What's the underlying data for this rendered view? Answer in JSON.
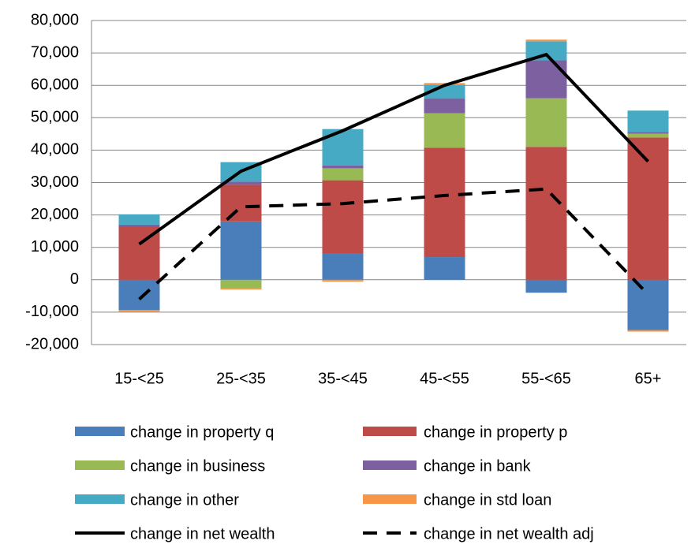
{
  "chart_data": {
    "type": "bar-line",
    "categories": [
      "15-<25",
      "25-<35",
      "35-<45",
      "45-<55",
      "55-<65",
      "65+"
    ],
    "series": [
      {
        "name": "change in property q",
        "color": "#4a7ebb",
        "kind": "bar",
        "values": [
          -9300,
          18000,
          8000,
          7000,
          -4000,
          -15500
        ]
      },
      {
        "name": "change in property p",
        "color": "#be4b48",
        "kind": "bar",
        "values": [
          16500,
          11300,
          22700,
          33700,
          41000,
          43900
        ]
      },
      {
        "name": "change in business",
        "color": "#98b954",
        "kind": "bar",
        "values": [
          0,
          -2500,
          3700,
          10700,
          15000,
          1200
        ]
      },
      {
        "name": "change in bank",
        "color": "#7d60a0",
        "kind": "bar",
        "values": [
          500,
          1000,
          900,
          4600,
          11700,
          500
        ]
      },
      {
        "name": "change in other",
        "color": "#46aac5",
        "kind": "bar",
        "values": [
          3200,
          6000,
          11200,
          4200,
          5900,
          6600
        ]
      },
      {
        "name": "change in std loan",
        "color": "#f79646",
        "kind": "bar",
        "values": [
          -700,
          -500,
          -600,
          500,
          500,
          -500
        ]
      },
      {
        "name": "change in net wealth",
        "color": "#000000",
        "kind": "line",
        "dashed": false,
        "values": [
          11000,
          33500,
          46000,
          60000,
          69500,
          36500
        ]
      },
      {
        "name": "change in net wealth adj",
        "color": "#000000",
        "kind": "line",
        "dashed": true,
        "values": [
          -6000,
          22500,
          23500,
          26000,
          28000,
          -4500
        ]
      }
    ],
    "ylim": [
      -20000,
      80000
    ],
    "yticks": [
      {
        "value": -20000,
        "label": "-20,000"
      },
      {
        "value": -10000,
        "label": "-10,000"
      },
      0,
      {
        "value": 10000,
        "label": "10,000"
      },
      {
        "value": 20000,
        "label": "20,000"
      },
      {
        "value": 30000,
        "label": "30,000"
      },
      {
        "value": 40000,
        "label": "40,000"
      },
      {
        "value": 50000,
        "label": "50,000"
      },
      {
        "value": 60000,
        "label": "60,000"
      },
      {
        "value": 70000,
        "label": "70,000"
      },
      {
        "value": 80000,
        "label": "80,000"
      }
    ],
    "grid": true,
    "legend": "bottom"
  }
}
